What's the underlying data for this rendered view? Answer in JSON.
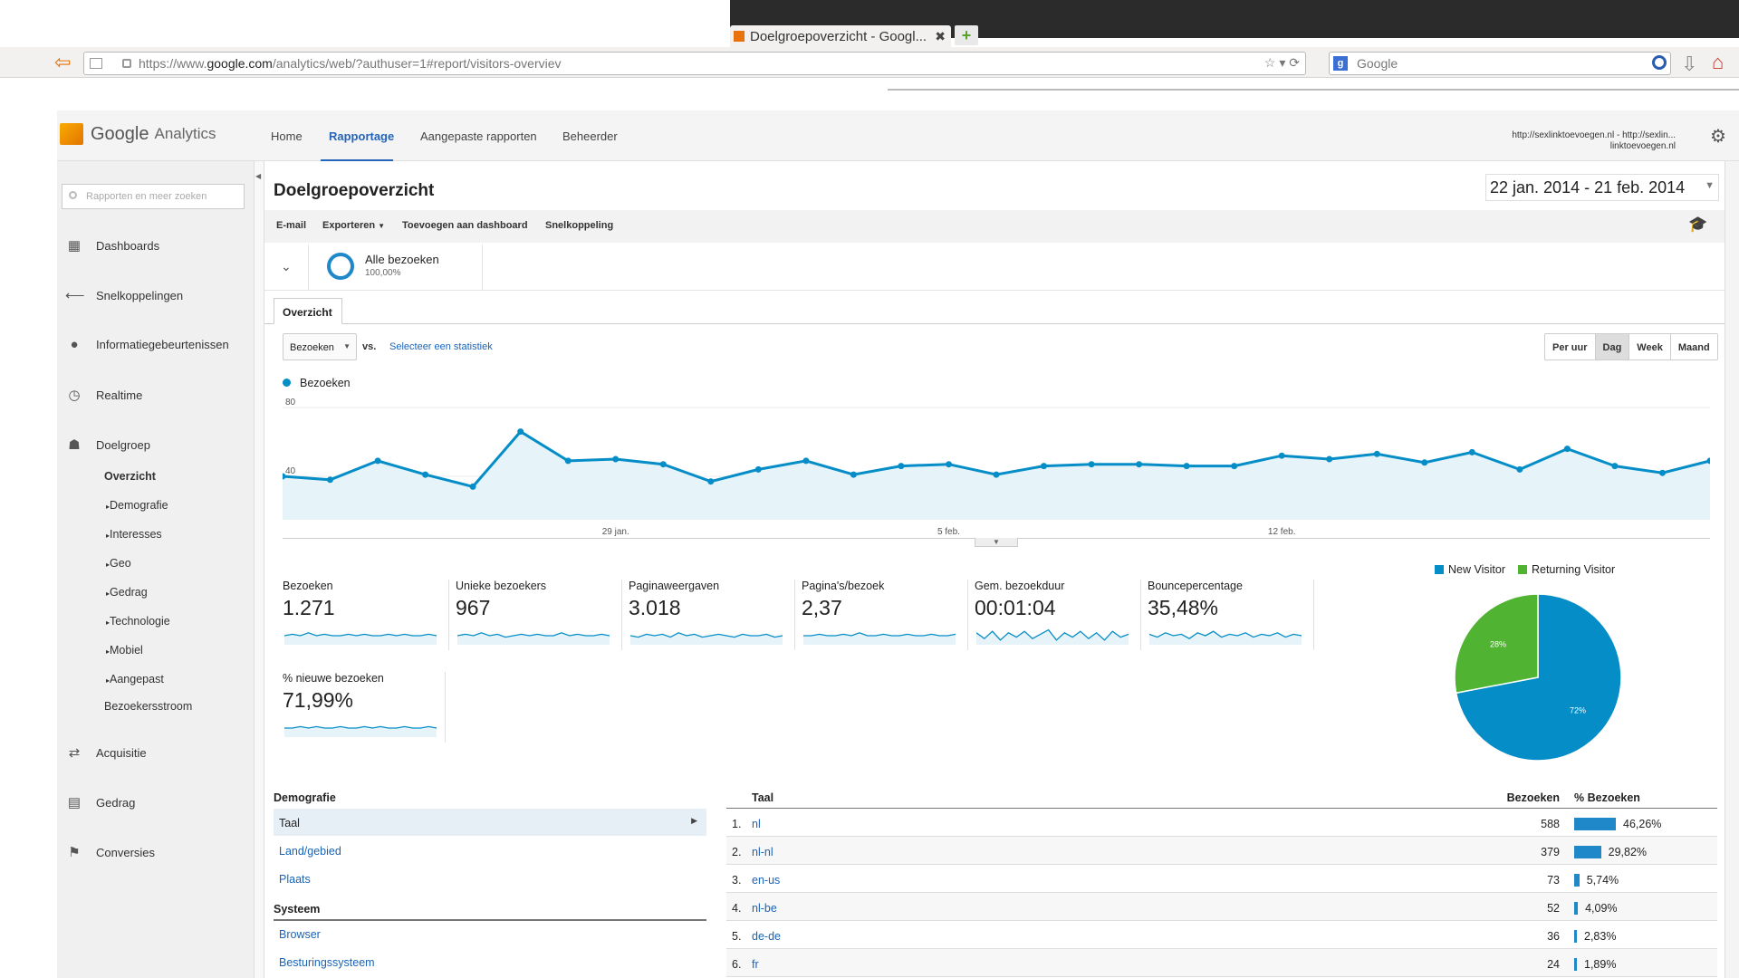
{
  "browser": {
    "tab_title": "Doelgroepoverzicht - Googl...",
    "url_prefix": "https://www.",
    "url_domain": "google.com",
    "url_rest": "/analytics/web/?authuser=1#report/visitors-overviev",
    "search_placeholder": "Google"
  },
  "header": {
    "logo_google": "Google",
    "logo_analytics": "Analytics",
    "nav": [
      "Home",
      "Rapportage",
      "Aangepaste rapporten",
      "Beheerder"
    ],
    "account_line1": "http://sexlinktoevoegen.nl - http://sexlin...",
    "account_line2": "linktoevoegen.nl"
  },
  "sidebar": {
    "search_placeholder": "Rapporten en meer zoeken",
    "items": [
      {
        "label": "Dashboards",
        "icon": "grid-icon"
      },
      {
        "label": "Snelkoppelingen",
        "icon": "shortcut-arrow-icon"
      },
      {
        "label": "Informatiegebeurtenissen",
        "icon": "lightbulb-icon"
      },
      {
        "label": "Realtime",
        "icon": "clock-icon"
      },
      {
        "label": "Doelgroep",
        "icon": "people-icon"
      },
      {
        "label": "Acquisitie",
        "icon": "acquisition-arrows-icon"
      },
      {
        "label": "Gedrag",
        "icon": "behavior-window-icon"
      },
      {
        "label": "Conversies",
        "icon": "flag-icon"
      }
    ],
    "doelgroep_sub": {
      "active": "Overzicht",
      "children": [
        "Demografie",
        "Interesses",
        "Geo",
        "Gedrag",
        "Technologie",
        "Mobiel",
        "Aangepast"
      ],
      "last": "Bezoekersstroom"
    }
  },
  "page": {
    "title": "Doelgroepoverzicht",
    "date_range": "22 jan. 2014 - 21 feb. 2014",
    "toolbar": [
      "E-mail",
      "Exporteren",
      "Toevoegen aan dashboard",
      "Snelkoppeling"
    ],
    "segment_name": "Alle bezoeken",
    "segment_pct": "100,00%",
    "tab": "Overzicht",
    "metric_select": "Bezoeken",
    "vs": "vs.",
    "select_stat": "Selecteer een statistiek",
    "granularity": [
      "Per uur",
      "Dag",
      "Week",
      "Maand"
    ],
    "granularity_selected": "Dag"
  },
  "chart_data": [
    {
      "type": "area",
      "series": [
        {
          "name": "Bezoeken",
          "values": [
            40,
            38,
            49,
            41,
            34,
            66,
            49,
            50,
            47,
            37,
            44,
            49,
            41,
            46,
            47,
            41,
            46,
            47,
            47,
            46,
            46,
            52,
            50,
            53,
            48,
            54,
            44,
            56,
            46,
            42,
            49
          ]
        }
      ],
      "ylim": [
        0,
        80
      ],
      "yticks": [
        "80",
        "40"
      ],
      "xticks": [
        {
          "label": "29 jan.",
          "index": 7
        },
        {
          "label": "5 feb.",
          "index": 14
        },
        {
          "label": "12 feb.",
          "index": 21
        }
      ],
      "color": "#058dc7",
      "fill": "#e6f4fa"
    },
    {
      "type": "pie",
      "slices": [
        {
          "name": "New Visitor",
          "value": 72,
          "label": "72%",
          "color": "#058dc7"
        },
        {
          "name": "Returning Visitor",
          "value": 28,
          "label": "28%",
          "color": "#50b432"
        }
      ]
    }
  ],
  "metrics": [
    {
      "label": "Bezoeken",
      "value": "1.271"
    },
    {
      "label": "Unieke bezoekers",
      "value": "967"
    },
    {
      "label": "Paginaweergaven",
      "value": "3.018"
    },
    {
      "label": "Pagina's/bezoek",
      "value": "2,37"
    },
    {
      "label": "Gem. bezoekduur",
      "value": "00:01:04"
    },
    {
      "label": "Bouncepercentage",
      "value": "35,48%"
    },
    {
      "label": "% nieuwe bezoeken",
      "value": "71,99%"
    }
  ],
  "demografie": {
    "heading": "Demografie",
    "rows": [
      "Taal",
      "Land/gebied",
      "Plaats"
    ],
    "system_heading": "Systeem",
    "system_rows": [
      "Browser",
      "Besturingssysteem"
    ]
  },
  "language_table": {
    "col_lang": "Taal",
    "col_visits": "Bezoeken",
    "col_pct": "% Bezoeken",
    "rows": [
      {
        "rank": "1.",
        "lang": "nl",
        "visits": "588",
        "pct": "46,26%",
        "share": 46.26
      },
      {
        "rank": "2.",
        "lang": "nl-nl",
        "visits": "379",
        "pct": "29,82%",
        "share": 29.82
      },
      {
        "rank": "3.",
        "lang": "en-us",
        "visits": "73",
        "pct": "5,74%",
        "share": 5.74
      },
      {
        "rank": "4.",
        "lang": "nl-be",
        "visits": "52",
        "pct": "4,09%",
        "share": 4.09
      },
      {
        "rank": "5.",
        "lang": "de-de",
        "visits": "36",
        "pct": "2,83%",
        "share": 2.83
      },
      {
        "rank": "6.",
        "lang": "fr",
        "visits": "24",
        "pct": "1,89%",
        "share": 1.89
      }
    ]
  }
}
